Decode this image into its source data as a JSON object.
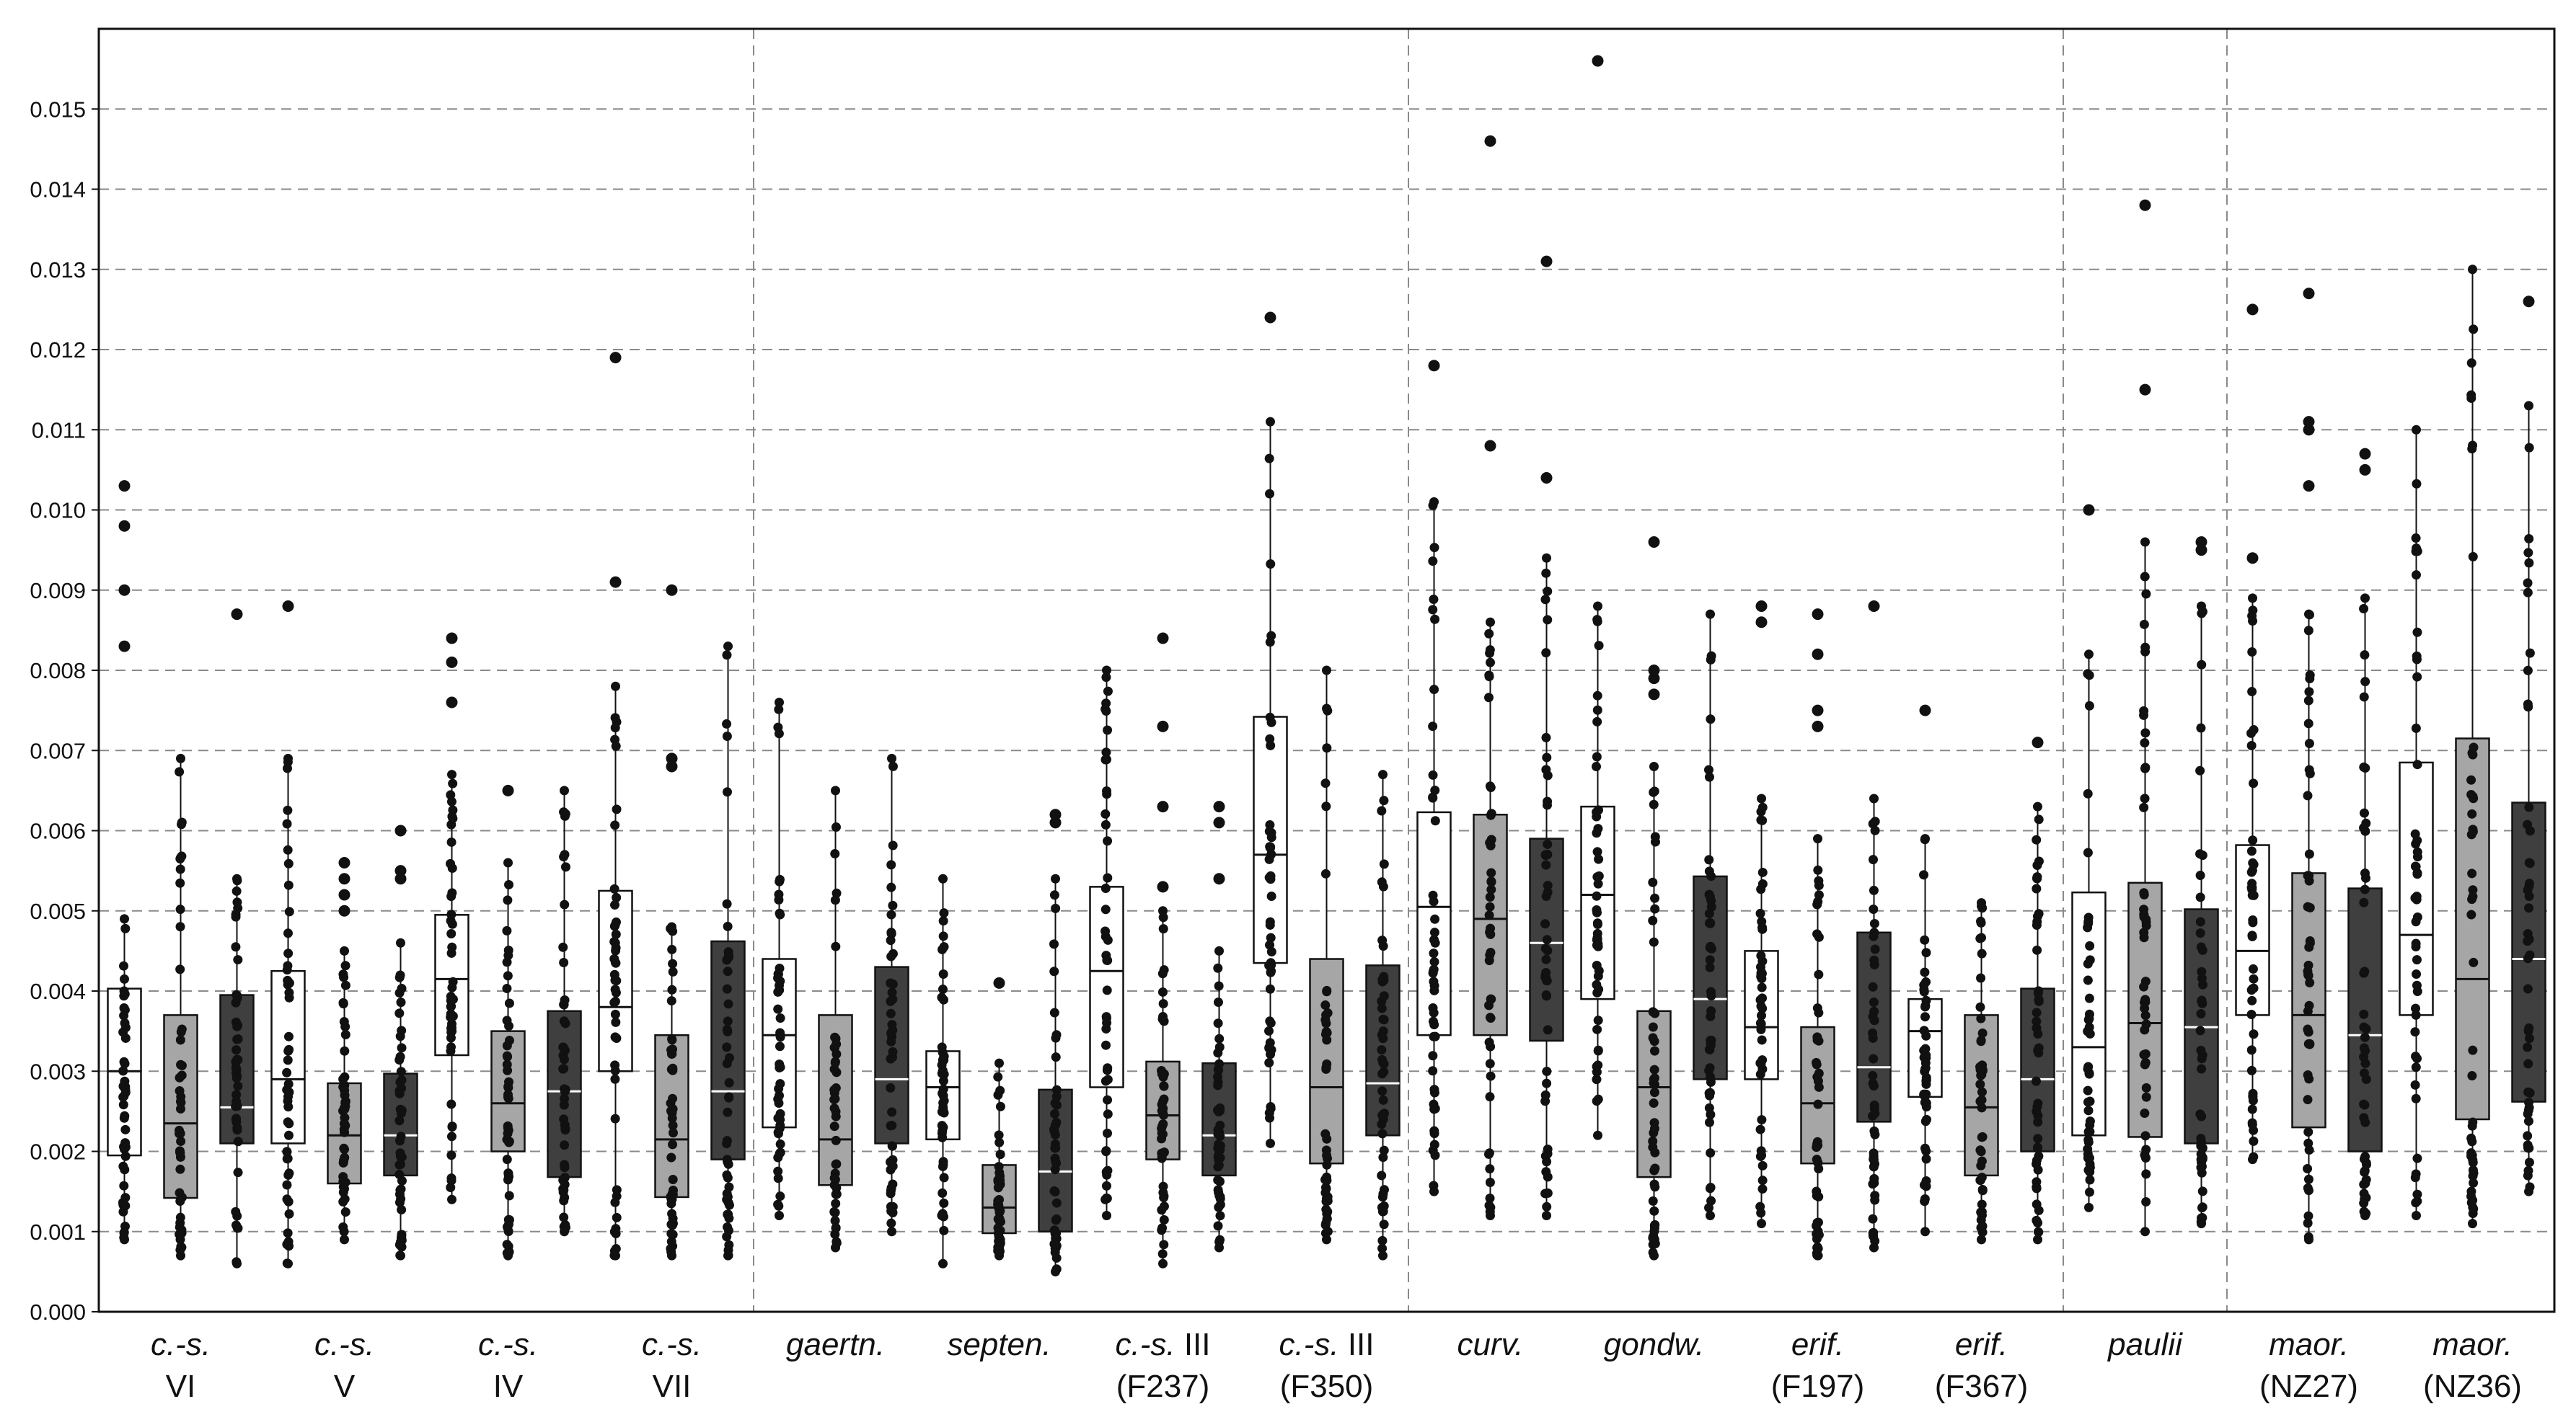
{
  "chart_data": {
    "type": "box",
    "ylim": [
      0,
      0.016
    ],
    "yticks": [
      "0.000",
      "0.001",
      "0.002",
      "0.003",
      "0.004",
      "0.005",
      "0.006",
      "0.007",
      "0.008",
      "0.009",
      "0.010",
      "0.011",
      "0.012",
      "0.013",
      "0.014",
      "0.015"
    ],
    "grid": true,
    "fills": [
      "#ffffff",
      "#a6a6a6",
      "#3f3f3f"
    ],
    "groups": [
      {
        "label": "c.-s.",
        "sub": "VI",
        "boxes": [
          {
            "q1": 0.00195,
            "median": 0.003,
            "q3": 0.00403,
            "lo": 0.0009,
            "hi": 0.0049,
            "out": [
              0.0083,
              0.009,
              0.0098,
              0.0103
            ]
          },
          {
            "q1": 0.00142,
            "median": 0.00235,
            "q3": 0.0037,
            "lo": 0.0007,
            "hi": 0.0069,
            "out": []
          },
          {
            "q1": 0.0021,
            "median": 0.00255,
            "q3": 0.00395,
            "lo": 0.0006,
            "hi": 0.0054,
            "out": [
              0.0087
            ]
          }
        ]
      },
      {
        "label": "c.-s.",
        "sub": "V",
        "boxes": [
          {
            "q1": 0.0021,
            "median": 0.0029,
            "q3": 0.00425,
            "lo": 0.0006,
            "hi": 0.0069,
            "out": [
              0.0088
            ]
          },
          {
            "q1": 0.0016,
            "median": 0.0022,
            "q3": 0.00285,
            "lo": 0.0009,
            "hi": 0.0045,
            "out": [
              0.005,
              0.0052,
              0.0054,
              0.0056
            ]
          },
          {
            "q1": 0.0017,
            "median": 0.0022,
            "q3": 0.00297,
            "lo": 0.0007,
            "hi": 0.0046,
            "out": [
              0.0054,
              0.0055,
              0.006
            ]
          }
        ]
      },
      {
        "label": "c.-s.",
        "sub": "IV",
        "boxes": [
          {
            "q1": 0.0032,
            "median": 0.00415,
            "q3": 0.00495,
            "lo": 0.0014,
            "hi": 0.0067,
            "out": [
              0.0076,
              0.0081,
              0.0084
            ]
          },
          {
            "q1": 0.002,
            "median": 0.0026,
            "q3": 0.0035,
            "lo": 0.0007,
            "hi": 0.0056,
            "out": [
              0.0065
            ]
          },
          {
            "q1": 0.00168,
            "median": 0.00275,
            "q3": 0.00375,
            "lo": 0.001,
            "hi": 0.0065,
            "out": []
          }
        ]
      },
      {
        "label": "c.-s.",
        "sub": "VII",
        "boxes": [
          {
            "q1": 0.003,
            "median": 0.0038,
            "q3": 0.00525,
            "lo": 0.0007,
            "hi": 0.0078,
            "out": [
              0.0091,
              0.0119
            ]
          },
          {
            "q1": 0.00143,
            "median": 0.00215,
            "q3": 0.00345,
            "lo": 0.0007,
            "hi": 0.0048,
            "out": [
              0.0068,
              0.0069,
              0.009
            ]
          },
          {
            "q1": 0.0019,
            "median": 0.00275,
            "q3": 0.00462,
            "lo": 0.0007,
            "hi": 0.0083,
            "out": []
          }
        ]
      },
      {
        "label": "gaertn.",
        "sub": "",
        "boxes": [
          {
            "q1": 0.0023,
            "median": 0.00345,
            "q3": 0.0044,
            "lo": 0.0012,
            "hi": 0.0076,
            "out": []
          },
          {
            "q1": 0.00158,
            "median": 0.00215,
            "q3": 0.0037,
            "lo": 0.0008,
            "hi": 0.0065,
            "out": []
          },
          {
            "q1": 0.0021,
            "median": 0.0029,
            "q3": 0.0043,
            "lo": 0.001,
            "hi": 0.0069,
            "out": []
          }
        ]
      },
      {
        "label": "septen.",
        "sub": "",
        "boxes": [
          {
            "q1": 0.00215,
            "median": 0.0028,
            "q3": 0.00325,
            "lo": 0.0006,
            "hi": 0.0054,
            "out": []
          },
          {
            "q1": 0.00098,
            "median": 0.0013,
            "q3": 0.00183,
            "lo": 0.0007,
            "hi": 0.0031,
            "out": [
              0.0041
            ]
          },
          {
            "q1": 0.001,
            "median": 0.00175,
            "q3": 0.00277,
            "lo": 0.0005,
            "hi": 0.0054,
            "out": [
              0.0061,
              0.0062
            ]
          }
        ]
      },
      {
        "label": "c.-s.",
        "sub": "III",
        "sub2": "(F237)",
        "boxes": [
          {
            "q1": 0.0028,
            "median": 0.00425,
            "q3": 0.0053,
            "lo": 0.0012,
            "hi": 0.008,
            "out": []
          },
          {
            "q1": 0.0019,
            "median": 0.00245,
            "q3": 0.00312,
            "lo": 0.0006,
            "hi": 0.005,
            "out": [
              0.0053,
              0.0063,
              0.0073,
              0.0084
            ]
          },
          {
            "q1": 0.0017,
            "median": 0.0022,
            "q3": 0.0031,
            "lo": 0.0008,
            "hi": 0.0045,
            "out": [
              0.0054,
              0.0061,
              0.0063
            ]
          }
        ]
      },
      {
        "label": "c.-s.",
        "sub": "III",
        "sub2": "(F350)",
        "boxes": [
          {
            "q1": 0.00435,
            "median": 0.0057,
            "q3": 0.00742,
            "lo": 0.0021,
            "hi": 0.0111,
            "out": [
              0.0124
            ]
          },
          {
            "q1": 0.00185,
            "median": 0.0028,
            "q3": 0.0044,
            "lo": 0.0009,
            "hi": 0.008,
            "out": []
          },
          {
            "q1": 0.0022,
            "median": 0.00285,
            "q3": 0.00432,
            "lo": 0.0007,
            "hi": 0.0067,
            "out": []
          }
        ]
      },
      {
        "label": "curv.",
        "sub": "",
        "boxes": [
          {
            "q1": 0.00345,
            "median": 0.00505,
            "q3": 0.00623,
            "lo": 0.0015,
            "hi": 0.0101,
            "out": [
              0.0118
            ]
          },
          {
            "q1": 0.00345,
            "median": 0.0049,
            "q3": 0.0062,
            "lo": 0.0012,
            "hi": 0.0086,
            "out": [
              0.0108,
              0.0146
            ]
          },
          {
            "q1": 0.00338,
            "median": 0.0046,
            "q3": 0.0059,
            "lo": 0.0012,
            "hi": 0.0094,
            "out": [
              0.0104,
              0.0131
            ]
          }
        ]
      },
      {
        "label": "gondw.",
        "sub": "",
        "boxes": [
          {
            "q1": 0.0039,
            "median": 0.0052,
            "q3": 0.0063,
            "lo": 0.0022,
            "hi": 0.0088,
            "out": [
              0.0156
            ]
          },
          {
            "q1": 0.00168,
            "median": 0.0028,
            "q3": 0.00375,
            "lo": 0.0007,
            "hi": 0.0068,
            "out": [
              0.0077,
              0.0079,
              0.008,
              0.0096
            ]
          },
          {
            "q1": 0.0029,
            "median": 0.0039,
            "q3": 0.00543,
            "lo": 0.0012,
            "hi": 0.0087,
            "out": []
          }
        ]
      },
      {
        "label": "erif.",
        "sub": "(F197)",
        "boxes": [
          {
            "q1": 0.0029,
            "median": 0.00355,
            "q3": 0.0045,
            "lo": 0.0011,
            "hi": 0.0064,
            "out": [
              0.0086,
              0.0088
            ]
          },
          {
            "q1": 0.00185,
            "median": 0.0026,
            "q3": 0.00355,
            "lo": 0.0007,
            "hi": 0.0059,
            "out": [
              0.0073,
              0.0075,
              0.0082,
              0.0087
            ]
          },
          {
            "q1": 0.00237,
            "median": 0.00305,
            "q3": 0.00473,
            "lo": 0.0008,
            "hi": 0.0064,
            "out": [
              0.0088
            ]
          }
        ]
      },
      {
        "label": "erif.",
        "sub": "(F367)",
        "boxes": [
          {
            "q1": 0.00268,
            "median": 0.0035,
            "q3": 0.0039,
            "lo": 0.001,
            "hi": 0.0059,
            "out": [
              0.0075
            ]
          },
          {
            "q1": 0.0017,
            "median": 0.00255,
            "q3": 0.0037,
            "lo": 0.0009,
            "hi": 0.0051,
            "out": []
          },
          {
            "q1": 0.002,
            "median": 0.0029,
            "q3": 0.00403,
            "lo": 0.0009,
            "hi": 0.0063,
            "out": [
              0.0071
            ]
          }
        ]
      },
      {
        "label": "paulii",
        "sub": "",
        "boxes": [
          {
            "q1": 0.0022,
            "median": 0.0033,
            "q3": 0.00523,
            "lo": 0.0013,
            "hi": 0.0082,
            "out": [
              0.01
            ]
          },
          {
            "q1": 0.00218,
            "median": 0.0036,
            "q3": 0.00535,
            "lo": 0.001,
            "hi": 0.0096,
            "out": [
              0.0115,
              0.0138
            ]
          },
          {
            "q1": 0.0021,
            "median": 0.00355,
            "q3": 0.00502,
            "lo": 0.0011,
            "hi": 0.0088,
            "out": [
              0.0095,
              0.0096
            ]
          }
        ]
      },
      {
        "label": "maor.",
        "sub": "(NZ27)",
        "boxes": [
          {
            "q1": 0.0037,
            "median": 0.0045,
            "q3": 0.00582,
            "lo": 0.0019,
            "hi": 0.0089,
            "out": [
              0.0094,
              0.0125
            ]
          },
          {
            "q1": 0.0023,
            "median": 0.0037,
            "q3": 0.00547,
            "lo": 0.0009,
            "hi": 0.0087,
            "out": [
              0.0103,
              0.011,
              0.0111,
              0.0127
            ]
          },
          {
            "q1": 0.002,
            "median": 0.00345,
            "q3": 0.00528,
            "lo": 0.0012,
            "hi": 0.0089,
            "out": [
              0.0105,
              0.0107
            ]
          }
        ]
      },
      {
        "label": "maor.",
        "sub": "(NZ36)",
        "boxes": [
          {
            "q1": 0.0037,
            "median": 0.0047,
            "q3": 0.00685,
            "lo": 0.0012,
            "hi": 0.011,
            "out": []
          },
          {
            "q1": 0.0024,
            "median": 0.00415,
            "q3": 0.00715,
            "lo": 0.0011,
            "hi": 0.013,
            "out": []
          },
          {
            "q1": 0.00262,
            "median": 0.0044,
            "q3": 0.00635,
            "lo": 0.0015,
            "hi": 0.0113,
            "out": [
              0.0126
            ]
          }
        ]
      }
    ],
    "section_dividers_after_groups": [
      4,
      8,
      12,
      13
    ]
  }
}
